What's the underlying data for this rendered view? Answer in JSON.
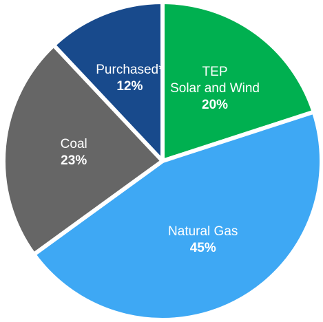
{
  "chart_data": {
    "type": "pie",
    "categories": [
      "TEP\nSolar and Wind",
      "Natural Gas",
      "Coal",
      "Purchased*"
    ],
    "values": [
      20,
      45,
      23,
      12
    ],
    "value_labels": [
      "20%",
      "45%",
      "23%",
      "12%"
    ],
    "colors": [
      "#00b050",
      "#3ea8f4",
      "#666666",
      "#184a8c"
    ]
  }
}
